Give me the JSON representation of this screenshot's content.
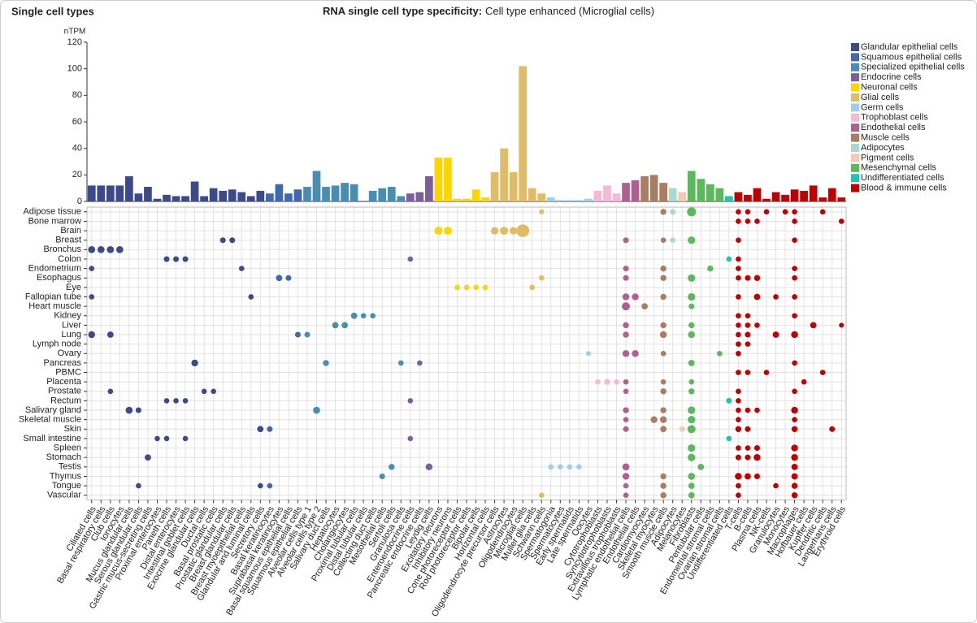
{
  "chart_data": {
    "type": "bar-dot-matrix",
    "title": "Single cell types",
    "subtitle_bold": "RNA single cell type specificity:",
    "subtitle": "Cell type enhanced (Microglial cells)",
    "ylabel": "nTPM",
    "ylim": [
      0,
      120
    ],
    "yticks": [
      0,
      20,
      40,
      60,
      80,
      100,
      120
    ],
    "groups": [
      {
        "name": "Glandular epithelial cells",
        "color": "#3c4a8b"
      },
      {
        "name": "Squamous epithelial cells",
        "color": "#3f68b1"
      },
      {
        "name": "Specialized epithelial cells",
        "color": "#4a8db3"
      },
      {
        "name": "Endocrine cells",
        "color": "#7c5e9a"
      },
      {
        "name": "Neuronal cells",
        "color": "#ffd500"
      },
      {
        "name": "Glial cells",
        "color": "#e1bb65"
      },
      {
        "name": "Germ cells",
        "color": "#9fcdec"
      },
      {
        "name": "Trophoblast cells",
        "color": "#f6b8d3"
      },
      {
        "name": "Endothelial cells",
        "color": "#b0608f"
      },
      {
        "name": "Muscle cells",
        "color": "#a87e62"
      },
      {
        "name": "Adipocytes",
        "color": "#a9d9cf"
      },
      {
        "name": "Pigment cells",
        "color": "#f8c8b4"
      },
      {
        "name": "Mesenchymal cells",
        "color": "#5cb85c"
      },
      {
        "name": "Undifferentiated cells",
        "color": "#20c4b4"
      },
      {
        "name": "Blood & immune cells",
        "color": "#c00000"
      }
    ],
    "categories": [
      "Ciliated cells",
      "Basal respiratory cells",
      "Club cells",
      "Ionocytes",
      "Mucus glandular cells",
      "Serous glandular cells",
      "Gastric mucus-secreting cells",
      "Proximal enterocytes",
      "Paneth cells",
      "Distal enterocytes",
      "Intestinal goblet cells",
      "Exocrine glandular cells",
      "Ductal cells",
      "Basal prostatic cells",
      "Prostatic glandular cells",
      "Breast glandular cells",
      "Breast myoepithelial cells",
      "Glandular and luminal cells",
      "Secretory cells",
      "Basal keratinocytes",
      "Suprabasal keratinocytes",
      "Basal squamous epithelial cells",
      "Squamous epithelial cells",
      "Alveolar cells type 1",
      "Alveolar cells type 2",
      "Salivary duct cells",
      "Hepatocytes",
      "Cholangiocytes",
      "Proximal tubular cells",
      "Distal tubular cells",
      "Collecting duct cells",
      "Mesothelial cells",
      "Sertoli cells",
      "Granulosa cells",
      "Enteroendocrine cells",
      "Pancreatic endocrine cells",
      "Leydig cells",
      "Excitatory neurons",
      "Inhibitory neurons",
      "Cone photoreceptor cells",
      "Rod photoreceptor cells",
      "Bipolar cells",
      "Horizontal cells",
      "Oligodendrocyte precursor cells",
      "Astrocytes",
      "Oligodendrocytes",
      "Microglial cells",
      "Muller glia cells",
      "Schwann cells",
      "Spermatogonia",
      "Spermatocytes",
      "Early spermatids",
      "Late spermatids",
      "Oocytes",
      "Cytotrophoblasts",
      "Syncytiotrophoblasts",
      "Extravillous trophoblasts",
      "Lymphatic endothelial cells",
      "Endothelial cells",
      "Cardiomyocytes",
      "Skeletal myocytes",
      "Smooth muscle cells",
      "Adipocytes",
      "Melanocytes",
      "Fibroblasts",
      "Peritubular cells",
      "Endometrial stromal cells",
      "Ovarian stromal cells",
      "Undifferentiated cells",
      "T-cells",
      "B-cells",
      "Plasma cells",
      "NK-cells",
      "Granulocytes",
      "Monocytes",
      "Macrophages",
      "Hofbauer cells",
      "Kupffer cells",
      "Dendritic cells",
      "Langerhans cells",
      "Erythroid cells"
    ],
    "category_groups": [
      0,
      0,
      0,
      0,
      0,
      0,
      0,
      0,
      0,
      0,
      0,
      0,
      0,
      0,
      0,
      0,
      0,
      0,
      0,
      1,
      1,
      1,
      1,
      2,
      2,
      2,
      2,
      2,
      2,
      2,
      2,
      2,
      2,
      2,
      3,
      3,
      3,
      4,
      4,
      4,
      4,
      4,
      4,
      5,
      5,
      5,
      5,
      5,
      5,
      6,
      6,
      6,
      6,
      6,
      7,
      7,
      7,
      8,
      8,
      9,
      9,
      9,
      10,
      11,
      12,
      12,
      12,
      12,
      13,
      14,
      14,
      14,
      14,
      14,
      14,
      14,
      14,
      14,
      14,
      14,
      14
    ],
    "values": [
      12,
      12,
      12,
      12,
      19,
      6,
      11,
      2,
      5,
      4,
      4,
      15,
      4,
      10,
      8,
      9,
      7,
      4,
      8,
      6,
      13,
      6,
      9,
      11,
      23,
      11,
      12,
      14,
      13,
      0,
      8,
      10,
      11,
      4,
      6,
      7,
      19,
      33,
      33,
      2,
      2,
      9,
      3,
      22,
      40,
      22,
      102,
      10,
      6,
      3,
      1,
      1,
      1,
      2,
      8,
      12,
      6,
      14,
      16,
      19,
      20,
      14,
      10,
      7,
      23,
      17,
      13,
      10,
      4,
      7,
      5,
      10,
      2,
      7,
      5,
      9,
      8,
      12,
      3,
      10,
      3
    ],
    "tissues": [
      "Adipose tissue",
      "Bone marrow",
      "Brain",
      "Breast",
      "Bronchus",
      "Colon",
      "Endometrium",
      "Esophagus",
      "Eye",
      "Fallopian tube",
      "Heart muscle",
      "Kidney",
      "Liver",
      "Lung",
      "Lymph node",
      "Ovary",
      "Pancreas",
      "PBMC",
      "Placenta",
      "Prostate",
      "Rectum",
      "Salivary gland",
      "Skeletal muscle",
      "Skin",
      "Small intestine",
      "Spleen",
      "Stomach",
      "Testis",
      "Thymus",
      "Tongue",
      "Vascular"
    ],
    "dots": [
      [
        0,
        48,
        3
      ],
      [
        0,
        61,
        6
      ],
      [
        0,
        62,
        5
      ],
      [
        0,
        64,
        20
      ],
      [
        0,
        69,
        4
      ],
      [
        0,
        70,
        4
      ],
      [
        0,
        72,
        4
      ],
      [
        0,
        74,
        4
      ],
      [
        0,
        75,
        4
      ],
      [
        0,
        78,
        4
      ],
      [
        1,
        69,
        4
      ],
      [
        1,
        70,
        4
      ],
      [
        1,
        71,
        4
      ],
      [
        1,
        75,
        4
      ],
      [
        1,
        80,
        4
      ],
      [
        2,
        37,
        15
      ],
      [
        2,
        38,
        15
      ],
      [
        2,
        43,
        12
      ],
      [
        2,
        44,
        15
      ],
      [
        2,
        45,
        12
      ],
      [
        2,
        46,
        50
      ],
      [
        3,
        14,
        5
      ],
      [
        3,
        15,
        5
      ],
      [
        3,
        57,
        5
      ],
      [
        3,
        61,
        4
      ],
      [
        3,
        62,
        4
      ],
      [
        3,
        64,
        12
      ],
      [
        3,
        69,
        4
      ],
      [
        3,
        75,
        4
      ],
      [
        4,
        0,
        10
      ],
      [
        4,
        1,
        10
      ],
      [
        4,
        2,
        10
      ],
      [
        4,
        3,
        10
      ],
      [
        5,
        8,
        5
      ],
      [
        5,
        9,
        5
      ],
      [
        5,
        10,
        5
      ],
      [
        5,
        34,
        4
      ],
      [
        5,
        68,
        4
      ],
      [
        5,
        69,
        4
      ],
      [
        6,
        0,
        4
      ],
      [
        6,
        16,
        4
      ],
      [
        6,
        57,
        5
      ],
      [
        6,
        61,
        6
      ],
      [
        6,
        66,
        6
      ],
      [
        6,
        69,
        4
      ],
      [
        6,
        75,
        4
      ],
      [
        7,
        20,
        7
      ],
      [
        7,
        21,
        5
      ],
      [
        7,
        48,
        4
      ],
      [
        7,
        57,
        5
      ],
      [
        7,
        61,
        6
      ],
      [
        7,
        64,
        12
      ],
      [
        7,
        69,
        4
      ],
      [
        7,
        70,
        5
      ],
      [
        7,
        71,
        6
      ],
      [
        7,
        75,
        4
      ],
      [
        8,
        39,
        4
      ],
      [
        8,
        40,
        4
      ],
      [
        8,
        41,
        4
      ],
      [
        8,
        42,
        4
      ],
      [
        8,
        47,
        4
      ],
      [
        9,
        0,
        4
      ],
      [
        9,
        17,
        4
      ],
      [
        9,
        57,
        9
      ],
      [
        9,
        58,
        9
      ],
      [
        9,
        61,
        6
      ],
      [
        9,
        64,
        12
      ],
      [
        9,
        69,
        4
      ],
      [
        9,
        71,
        7
      ],
      [
        9,
        73,
        4
      ],
      [
        9,
        75,
        4
      ],
      [
        10,
        57,
        15
      ],
      [
        10,
        59,
        7
      ],
      [
        10,
        64,
        5
      ],
      [
        11,
        28,
        7
      ],
      [
        11,
        29,
        4
      ],
      [
        11,
        30,
        4
      ],
      [
        11,
        69,
        4
      ],
      [
        11,
        70,
        4
      ],
      [
        11,
        75,
        4
      ],
      [
        12,
        26,
        7
      ],
      [
        12,
        27,
        7
      ],
      [
        12,
        57,
        6
      ],
      [
        12,
        61,
        6
      ],
      [
        12,
        64,
        6
      ],
      [
        12,
        69,
        4
      ],
      [
        12,
        70,
        4
      ],
      [
        12,
        71,
        4
      ],
      [
        12,
        77,
        7
      ],
      [
        12,
        80,
        3
      ],
      [
        13,
        0,
        9
      ],
      [
        13,
        2,
        7
      ],
      [
        13,
        22,
        5
      ],
      [
        13,
        23,
        5
      ],
      [
        13,
        57,
        6
      ],
      [
        13,
        61,
        9
      ],
      [
        13,
        64,
        9
      ],
      [
        13,
        69,
        4
      ],
      [
        13,
        70,
        5
      ],
      [
        13,
        73,
        7
      ],
      [
        13,
        75,
        9
      ],
      [
        14,
        69,
        4
      ],
      [
        14,
        70,
        4
      ],
      [
        15,
        53,
        3
      ],
      [
        15,
        57,
        9
      ],
      [
        15,
        58,
        9
      ],
      [
        15,
        61,
        4
      ],
      [
        15,
        67,
        4
      ],
      [
        15,
        69,
        4
      ],
      [
        16,
        11,
        9
      ],
      [
        16,
        25,
        6
      ],
      [
        16,
        33,
        4
      ],
      [
        16,
        35,
        4
      ],
      [
        16,
        64,
        7
      ],
      [
        16,
        75,
        4
      ],
      [
        17,
        69,
        4
      ],
      [
        17,
        70,
        4
      ],
      [
        17,
        72,
        4
      ],
      [
        17,
        78,
        4
      ],
      [
        18,
        54,
        4
      ],
      [
        18,
        55,
        6
      ],
      [
        18,
        56,
        4
      ],
      [
        18,
        57,
        4
      ],
      [
        18,
        61,
        4
      ],
      [
        18,
        64,
        4
      ],
      [
        18,
        76,
        4
      ],
      [
        19,
        2,
        4
      ],
      [
        19,
        12,
        4
      ],
      [
        19,
        13,
        4
      ],
      [
        19,
        57,
        4
      ],
      [
        19,
        61,
        6
      ],
      [
        19,
        64,
        6
      ],
      [
        19,
        69,
        4
      ],
      [
        19,
        75,
        4
      ],
      [
        20,
        8,
        4
      ],
      [
        20,
        9,
        4
      ],
      [
        20,
        10,
        4
      ],
      [
        20,
        34,
        4
      ],
      [
        20,
        68,
        5
      ],
      [
        20,
        69,
        4
      ],
      [
        21,
        4,
        10
      ],
      [
        21,
        5,
        5
      ],
      [
        21,
        24,
        10
      ],
      [
        21,
        57,
        6
      ],
      [
        21,
        61,
        6
      ],
      [
        21,
        64,
        12
      ],
      [
        21,
        69,
        4
      ],
      [
        21,
        70,
        4
      ],
      [
        21,
        71,
        4
      ],
      [
        21,
        75,
        9
      ],
      [
        22,
        57,
        4
      ],
      [
        22,
        60,
        9
      ],
      [
        22,
        61,
        9
      ],
      [
        22,
        64,
        12
      ],
      [
        22,
        69,
        4
      ],
      [
        22,
        75,
        4
      ],
      [
        23,
        18,
        7
      ],
      [
        23,
        19,
        5
      ],
      [
        23,
        57,
        5
      ],
      [
        23,
        61,
        7
      ],
      [
        23,
        63,
        5
      ],
      [
        23,
        64,
        15
      ],
      [
        23,
        69,
        6
      ],
      [
        23,
        70,
        5
      ],
      [
        23,
        75,
        6
      ],
      [
        23,
        79,
        5
      ],
      [
        24,
        7,
        4
      ],
      [
        24,
        8,
        4
      ],
      [
        24,
        10,
        4
      ],
      [
        24,
        34,
        4
      ],
      [
        24,
        68,
        4
      ],
      [
        25,
        64,
        12
      ],
      [
        25,
        69,
        4
      ],
      [
        25,
        70,
        4
      ],
      [
        25,
        71,
        5
      ],
      [
        25,
        75,
        9
      ],
      [
        26,
        6,
        7
      ],
      [
        26,
        64,
        12
      ],
      [
        26,
        69,
        5
      ],
      [
        26,
        70,
        5
      ],
      [
        26,
        71,
        9
      ],
      [
        26,
        75,
        9
      ],
      [
        27,
        32,
        6
      ],
      [
        27,
        36,
        9
      ],
      [
        27,
        49,
        4
      ],
      [
        27,
        50,
        4
      ],
      [
        27,
        51,
        4
      ],
      [
        27,
        52,
        4
      ],
      [
        27,
        57,
        10
      ],
      [
        27,
        65,
        7
      ],
      [
        27,
        75,
        7
      ],
      [
        28,
        31,
        5
      ],
      [
        28,
        57,
        9
      ],
      [
        28,
        61,
        6
      ],
      [
        28,
        64,
        10
      ],
      [
        28,
        69,
        9
      ],
      [
        28,
        70,
        7
      ],
      [
        28,
        71,
        5
      ],
      [
        28,
        75,
        7
      ],
      [
        29,
        5,
        4
      ],
      [
        29,
        18,
        4
      ],
      [
        29,
        19,
        4
      ],
      [
        29,
        57,
        4
      ],
      [
        29,
        61,
        6
      ],
      [
        29,
        64,
        7
      ],
      [
        29,
        69,
        4
      ],
      [
        29,
        73,
        4
      ],
      [
        29,
        75,
        6
      ],
      [
        30,
        48,
        4
      ],
      [
        30,
        57,
        4
      ],
      [
        30,
        61,
        6
      ],
      [
        30,
        64,
        7
      ],
      [
        30,
        69,
        4
      ],
      [
        30,
        75,
        6
      ]
    ]
  }
}
